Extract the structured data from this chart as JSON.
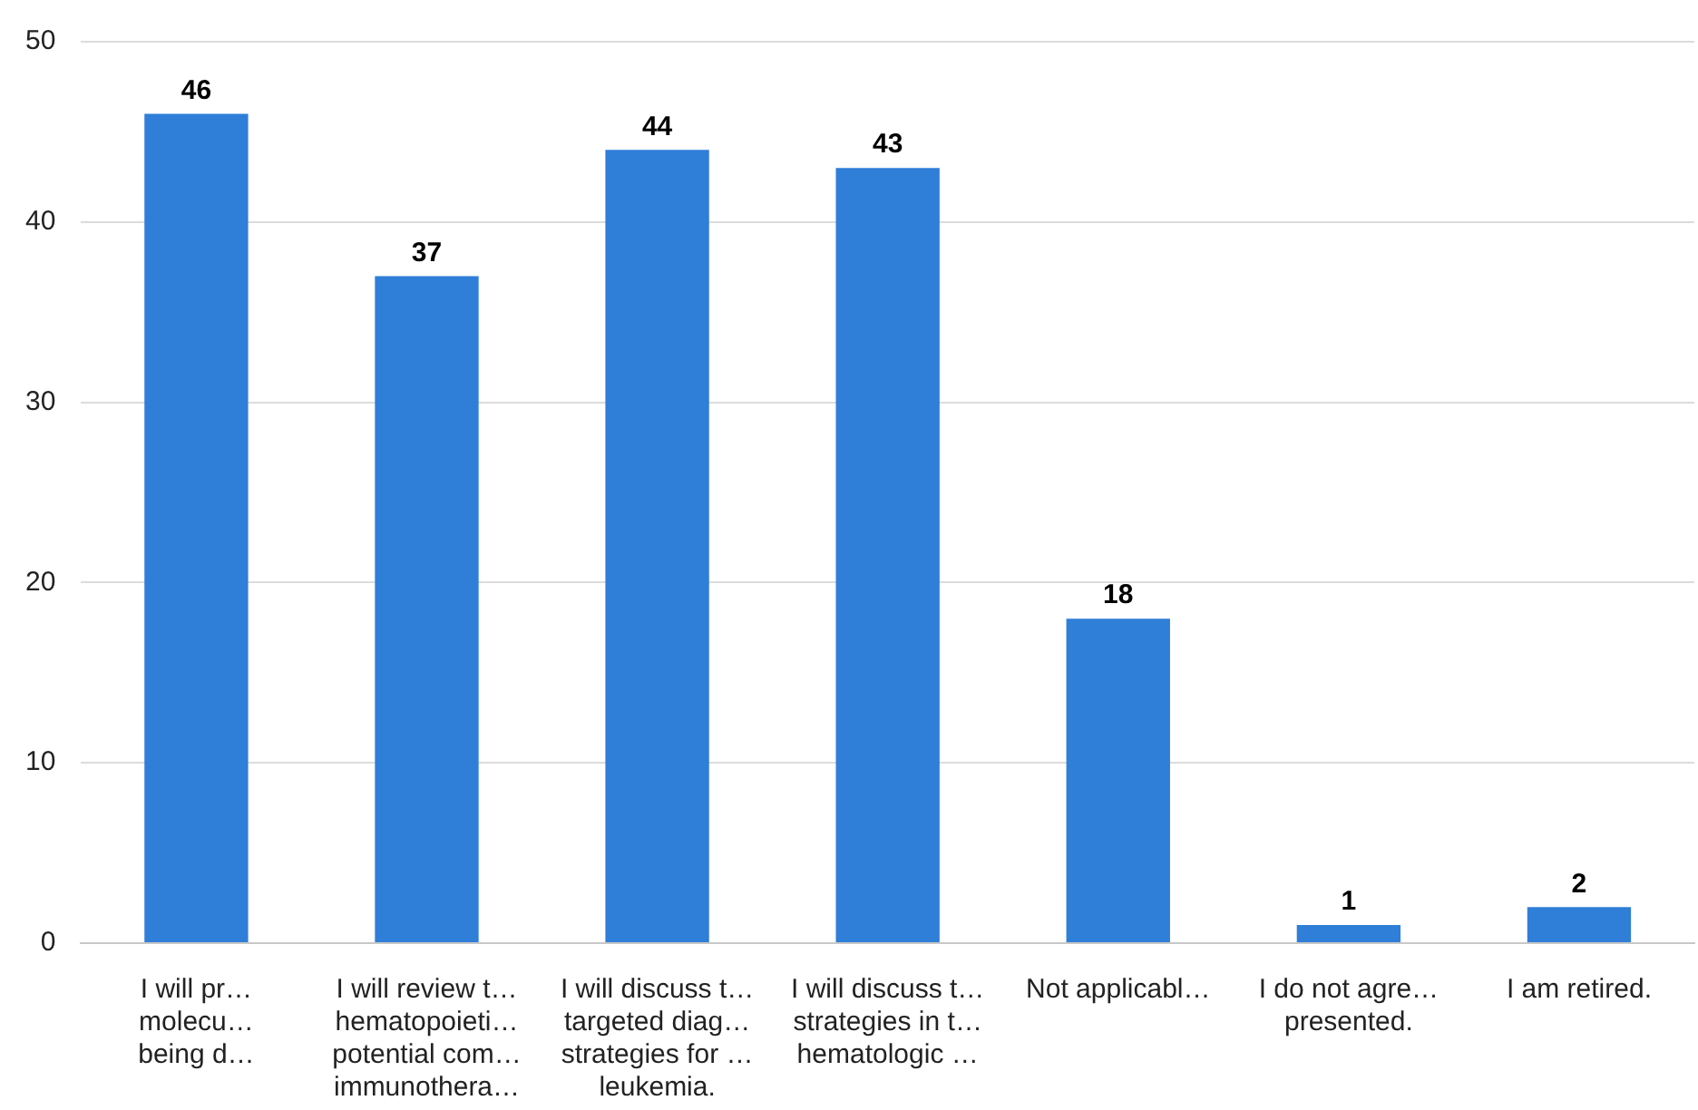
{
  "chart_data": {
    "type": "bar",
    "categories": [
      "I will pr…\nmolecu…\nbeing d…",
      "I will review t…\nhematopoieti…\npotential com…\nimmunothera…",
      "I will discuss t…\ntargeted diag…\nstrategies for …\nleukemia.",
      "I will discuss t…\nstrategies in t…\nhematologic …",
      "Not applicabl…",
      "I do not agre…\npresented.",
      "I am retired."
    ],
    "values": [
      46,
      37,
      44,
      43,
      18,
      1,
      2
    ],
    "color": "#2f7ed8",
    "ylim": [
      0,
      50
    ],
    "yticks": [
      0,
      10,
      20,
      30,
      40,
      50
    ],
    "grid": "y",
    "data_labels": true,
    "legend": false
  }
}
